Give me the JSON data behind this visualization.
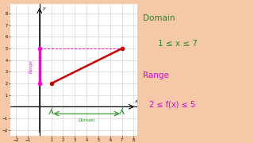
{
  "background_color": "#f5c9a8",
  "graph_bg": "#ffffff",
  "line_x": [
    1,
    7
  ],
  "line_y": [
    2,
    5
  ],
  "line_color": "#cc0000",
  "line_width": 1.8,
  "domain_color": "#228B22",
  "range_color": "#ff00cc",
  "xlim": [
    -2.5,
    8.3
  ],
  "ylim": [
    -2.5,
    8.8
  ],
  "xticks": [
    -2,
    -1,
    1,
    2,
    3,
    4,
    5,
    6,
    7,
    8
  ],
  "yticks": [
    -2,
    -1,
    1,
    2,
    3,
    4,
    5,
    6,
    7,
    8
  ],
  "right_domain_label": "Domain",
  "right_domain_eq": "1 ≤ x ≤ 7",
  "right_range_label": "Range",
  "right_range_eq": "2 ≤ f(x) ≤ 5",
  "right_domain_color": "#228B22",
  "right_range_color": "#dd00dd",
  "figsize": [
    3.2,
    1.8
  ],
  "dpi": 100
}
